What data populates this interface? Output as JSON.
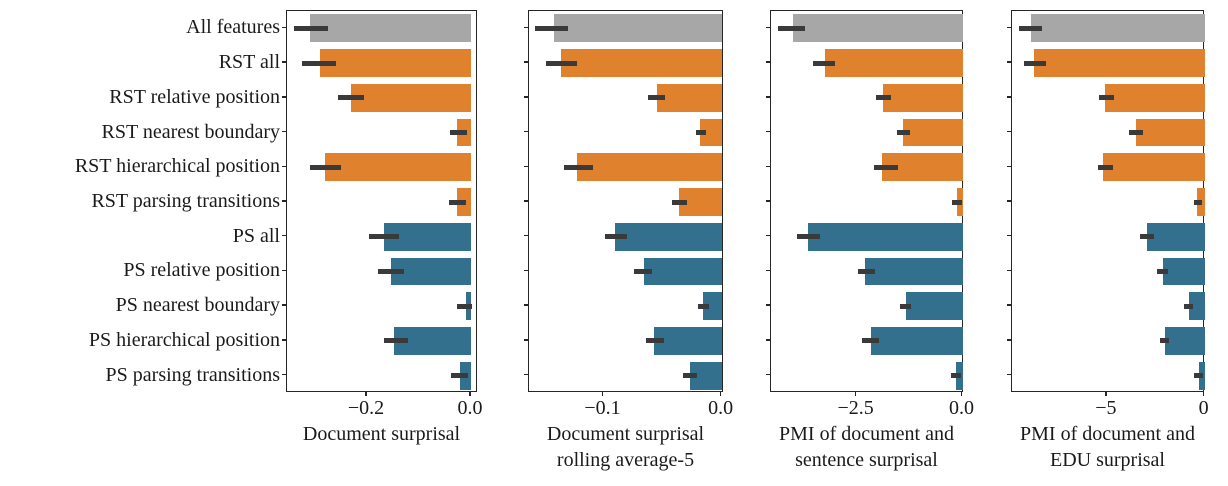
{
  "chart_data": {
    "type": "bar",
    "orientation": "horizontal",
    "grid": false,
    "legend": null,
    "categories": [
      "All features",
      "RST all",
      "RST relative position",
      "RST nearest boundary",
      "RST hierarchical position",
      "RST parsing transitions",
      "PS all",
      "PS relative position",
      "PS nearest boundary",
      "PS hierarchical position",
      "PS parsing transitions"
    ],
    "category_groups": [
      "all",
      "rst",
      "rst",
      "rst",
      "rst",
      "rst",
      "ps",
      "ps",
      "ps",
      "ps",
      "ps"
    ],
    "colors": {
      "all": "#a7a7a7",
      "rst": "#e0812e",
      "ps": "#33708e",
      "error_bar": "#3a3a3a",
      "spine": "#262626",
      "text": "#1a1a1a",
      "background": "#ffffff"
    },
    "panels": [
      {
        "xlabel_lines": [
          "Document surprisal"
        ],
        "xlim": [
          -0.354,
          0.0135
        ],
        "xticks": [
          {
            "value": -0.2,
            "label": "−0.2"
          },
          {
            "value": 0.0,
            "label": "0.0"
          }
        ],
        "values": [
          -0.31,
          -0.29,
          -0.23,
          -0.027,
          -0.28,
          -0.027,
          -0.167,
          -0.154,
          -0.01,
          -0.148,
          -0.021
        ],
        "err_lo": [
          -0.34,
          -0.325,
          -0.256,
          -0.04,
          -0.31,
          -0.042,
          -0.196,
          -0.179,
          -0.027,
          -0.167,
          -0.038
        ],
        "err_hi": [
          -0.275,
          -0.26,
          -0.205,
          -0.008,
          -0.25,
          -0.01,
          -0.138,
          -0.129,
          0.002,
          -0.121,
          -0.006
        ]
      },
      {
        "xlabel_lines": [
          "Document surprisal",
          "rolling average-5"
        ],
        "xlim": [
          -0.163,
          0.002
        ],
        "xticks": [
          {
            "value": -0.1,
            "label": "−0.1"
          },
          {
            "value": 0.0,
            "label": "0.0"
          }
        ],
        "values": [
          -0.142,
          -0.136,
          -0.055,
          -0.018,
          -0.122,
          -0.036,
          -0.09,
          -0.066,
          -0.016,
          -0.057,
          -0.027
        ],
        "err_lo": [
          -0.158,
          -0.149,
          -0.062,
          -0.022,
          -0.133,
          -0.042,
          -0.099,
          -0.074,
          -0.02,
          -0.064,
          -0.033
        ],
        "err_hi": [
          -0.13,
          -0.122,
          -0.048,
          -0.013,
          -0.109,
          -0.029,
          -0.08,
          -0.059,
          -0.011,
          -0.049,
          -0.021
        ]
      },
      {
        "xlabel_lines": [
          "PMI of document and",
          "sentence surprisal"
        ],
        "xlim": [
          -4.52,
          0.035
        ],
        "xticks": [
          {
            "value": -2.5,
            "label": "−2.5"
          },
          {
            "value": 0.0,
            "label": "0.0"
          }
        ],
        "values": [
          -4.0,
          -3.25,
          -1.87,
          -1.4,
          -1.9,
          -0.12,
          -3.64,
          -2.3,
          -1.33,
          -2.16,
          -0.15
        ],
        "err_lo": [
          -4.35,
          -3.52,
          -2.04,
          -1.54,
          -2.1,
          -0.26,
          -3.9,
          -2.46,
          -1.47,
          -2.37,
          -0.27
        ],
        "err_hi": [
          -3.72,
          -3.0,
          -1.68,
          -1.24,
          -1.53,
          -0.02,
          -3.36,
          -2.06,
          -1.21,
          -1.97,
          -0.04
        ]
      },
      {
        "xlabel_lines": [
          "PMI of document and",
          "EDU surprisal"
        ],
        "xlim": [
          -9.85,
          0.02
        ],
        "xticks": [
          {
            "value": -5,
            "label": "−5"
          },
          {
            "value": 0,
            "label": "0"
          }
        ],
        "values": [
          -8.9,
          -8.7,
          -5.1,
          -3.5,
          -5.2,
          -0.4,
          -2.95,
          -2.15,
          -0.8,
          -2.05,
          -0.3
        ],
        "err_lo": [
          -9.5,
          -9.25,
          -5.4,
          -3.85,
          -5.45,
          -0.56,
          -3.3,
          -2.45,
          -1.05,
          -2.3,
          -0.55
        ],
        "err_hi": [
          -8.3,
          -8.1,
          -4.65,
          -3.15,
          -4.7,
          -0.15,
          -2.6,
          -1.85,
          -0.6,
          -1.8,
          -0.1
        ]
      }
    ]
  }
}
